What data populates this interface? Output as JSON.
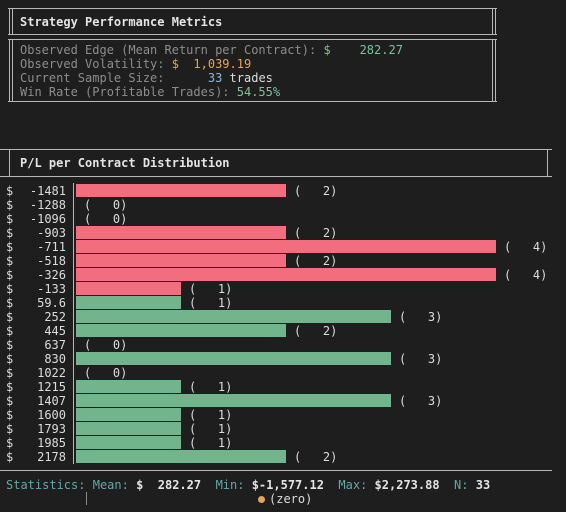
{
  "metrics": {
    "title": "Strategy Performance Metrics",
    "edge_label": "Observed Edge (Mean Return per Contract): ",
    "edge_currency": "$",
    "edge_value": "282.27",
    "vol_label": "Observed Volatility: ",
    "vol_currency": "$",
    "vol_value": "1,039.19",
    "sample_label": "Current Sample Size:",
    "sample_value": "33",
    "sample_unit": "trades",
    "winrate_label": "Win Rate (Profitable Trades): ",
    "winrate_value": "54.55%"
  },
  "histogram": {
    "title": "P/L per Contract Distribution",
    "currency": "$",
    "bins": [
      {
        "label": "-1481",
        "count": 2,
        "sign": "neg"
      },
      {
        "label": "-1288",
        "count": 0,
        "sign": "neg"
      },
      {
        "label": "-1096",
        "count": 0,
        "sign": "neg"
      },
      {
        "label": "-903",
        "count": 2,
        "sign": "neg"
      },
      {
        "label": "-711",
        "count": 4,
        "sign": "neg"
      },
      {
        "label": "-518",
        "count": 2,
        "sign": "neg"
      },
      {
        "label": "-326",
        "count": 4,
        "sign": "neg"
      },
      {
        "label": "-133",
        "count": 1,
        "sign": "neg"
      },
      {
        "label": "59.6",
        "count": 1,
        "sign": "pos"
      },
      {
        "label": "252",
        "count": 3,
        "sign": "pos"
      },
      {
        "label": "445",
        "count": 2,
        "sign": "pos"
      },
      {
        "label": "637",
        "count": 0,
        "sign": "pos"
      },
      {
        "label": "830",
        "count": 3,
        "sign": "pos"
      },
      {
        "label": "1022",
        "count": 0,
        "sign": "pos"
      },
      {
        "label": "1215",
        "count": 1,
        "sign": "pos"
      },
      {
        "label": "1407",
        "count": 3,
        "sign": "pos"
      },
      {
        "label": "1600",
        "count": 1,
        "sign": "pos"
      },
      {
        "label": "1793",
        "count": 1,
        "sign": "pos"
      },
      {
        "label": "1985",
        "count": 1,
        "sign": "pos"
      },
      {
        "label": "2178",
        "count": 2,
        "sign": "pos"
      }
    ],
    "colors": {
      "negative": "#f26d7d",
      "positive": "#72b58c"
    }
  },
  "stats": {
    "label": "Statistics:",
    "mean_label": "Mean:",
    "mean_value": "$  282.27",
    "min_label": "Min:",
    "min_value": "$-1,577.12",
    "max_label": "Max:",
    "max_value": "$2,273.88",
    "n_label": "N:",
    "n_value": "33",
    "legend_label": "(zero)"
  },
  "chart_data": {
    "type": "bar",
    "title": "P/L per Contract Distribution",
    "categories": [
      "-1481",
      "-1288",
      "-1096",
      "-903",
      "-711",
      "-518",
      "-326",
      "-133",
      "59.6",
      "252",
      "445",
      "637",
      "830",
      "1022",
      "1215",
      "1407",
      "1600",
      "1793",
      "1985",
      "2178"
    ],
    "values": [
      2,
      0,
      0,
      2,
      4,
      2,
      4,
      1,
      1,
      3,
      2,
      0,
      3,
      0,
      1,
      3,
      1,
      1,
      1,
      2
    ],
    "orientation": "horizontal",
    "xlim": [
      0,
      4
    ]
  }
}
